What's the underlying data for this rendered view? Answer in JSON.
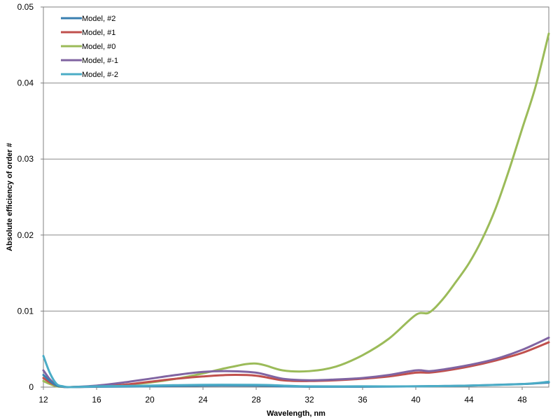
{
  "chart_data": {
    "type": "line",
    "xlabel": "Wavelength, nm",
    "ylabel": "Absolute efficiency of order #",
    "xlim": [
      12,
      50
    ],
    "ylim": [
      0,
      0.05
    ],
    "x_ticks": [
      12,
      16,
      20,
      24,
      28,
      32,
      36,
      40,
      44,
      48
    ],
    "y_ticks": [
      0,
      0.01,
      0.02,
      0.03,
      0.04,
      0.05
    ],
    "y_tick_labels": [
      "0",
      "0.01",
      "0.02",
      "0.03",
      "0.04",
      "0.05"
    ],
    "grid": "horizontal",
    "legend_position": "top-left",
    "series": [
      {
        "name": "Model, #2",
        "color": "#3a7fb0",
        "x": [
          12,
          12.5,
          13,
          13.5,
          14,
          16,
          20,
          24,
          28,
          30,
          32,
          36,
          40,
          44,
          48,
          50
        ],
        "y": [
          0.0016,
          0.0008,
          0.0002,
          5e-05,
          0.0,
          5e-05,
          0.0001,
          0.0002,
          0.0002,
          0.0001,
          5e-05,
          5e-05,
          0.0001,
          0.0002,
          0.0004,
          0.0006
        ]
      },
      {
        "name": "Model, #1",
        "color": "#c0504d",
        "x": [
          12,
          12.5,
          13,
          13.5,
          14,
          16,
          18,
          20,
          22,
          24,
          26,
          28,
          30,
          32,
          34,
          36,
          38,
          40,
          41,
          42,
          44,
          46,
          48,
          50
        ],
        "y": [
          0.0012,
          0.0006,
          0.0002,
          5e-05,
          0.0,
          0.0001,
          0.0003,
          0.0007,
          0.0011,
          0.0014,
          0.0016,
          0.0015,
          0.0009,
          0.0008,
          0.0009,
          0.0011,
          0.0014,
          0.0019,
          0.0019,
          0.0021,
          0.0027,
          0.0035,
          0.0045,
          0.0059
        ]
      },
      {
        "name": "Model, #0",
        "color": "#9bbb59",
        "x": [
          12,
          12.5,
          13,
          13.5,
          14,
          16,
          18,
          20,
          22,
          24,
          26,
          28,
          30,
          32,
          34,
          36,
          38,
          40,
          41,
          42,
          43,
          44,
          45,
          46,
          47,
          48,
          49,
          50
        ],
        "y": [
          0.0008,
          0.0004,
          0.0001,
          2e-05,
          0.0,
          0.0001,
          0.0003,
          0.0006,
          0.0011,
          0.0018,
          0.0026,
          0.0031,
          0.0022,
          0.0021,
          0.0027,
          0.0042,
          0.0064,
          0.0095,
          0.0098,
          0.0115,
          0.0138,
          0.0163,
          0.0195,
          0.0235,
          0.0285,
          0.034,
          0.0395,
          0.0465
        ]
      },
      {
        "name": "Model, #-1",
        "color": "#8064a2",
        "x": [
          12,
          12.5,
          13,
          13.5,
          14,
          16,
          18,
          20,
          22,
          24,
          26,
          28,
          30,
          32,
          34,
          36,
          38,
          40,
          41,
          42,
          44,
          46,
          48,
          50
        ],
        "y": [
          0.0022,
          0.001,
          0.0003,
          5e-05,
          0.0,
          0.0002,
          0.0006,
          0.0011,
          0.0016,
          0.002,
          0.0021,
          0.0019,
          0.0011,
          0.0009,
          0.001,
          0.0012,
          0.0016,
          0.0022,
          0.0021,
          0.0023,
          0.0029,
          0.0037,
          0.0049,
          0.0065
        ]
      },
      {
        "name": "Model, #-2",
        "color": "#4bacc6",
        "x": [
          12,
          12.5,
          13,
          13.5,
          14,
          16,
          20,
          24,
          28,
          30,
          32,
          36,
          40,
          44,
          48,
          50
        ],
        "y": [
          0.0041,
          0.0018,
          0.0004,
          0.0001,
          0.0,
          0.0001,
          0.0002,
          0.0003,
          0.0003,
          0.0002,
          0.0001,
          0.0001,
          0.0001,
          0.0002,
          0.0004,
          0.0007
        ]
      }
    ]
  }
}
